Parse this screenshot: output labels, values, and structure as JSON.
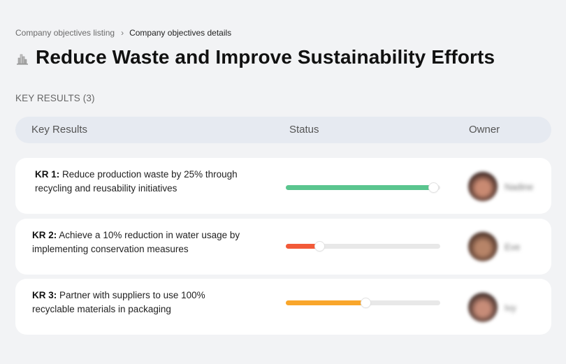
{
  "breadcrumb": {
    "items": [
      {
        "label": "Company objectives listing"
      },
      {
        "label": "Company objectives details"
      }
    ],
    "separator": "›"
  },
  "objective": {
    "icon": "cityscape-icon",
    "title": "Reduce Waste and Improve Sustainability Efforts"
  },
  "key_results_section": {
    "label": "KEY RESULTS (3)"
  },
  "table": {
    "columns": [
      "Key Results",
      "Status",
      "Owner"
    ],
    "rows": [
      {
        "kr_label": "KR 1:",
        "description": "Reduce production waste by 25% through recycling and reusability initiatives",
        "progress_percent": 96,
        "progress_color": "#5ac58e",
        "owner": {
          "name": "Nadine",
          "avatar_colors": [
            "#3a2420",
            "#c98a72"
          ]
        }
      },
      {
        "kr_label": "KR 2:",
        "description": "Achieve a 10% reduction in water usage by implementing conservation measures",
        "progress_percent": 22,
        "progress_color": "#f25a38",
        "owner": {
          "name": "Eve",
          "avatar_colors": [
            "#4a3026",
            "#b78468"
          ]
        }
      },
      {
        "kr_label": "KR 3:",
        "description": "Partner with suppliers to use 100% recyclable materials in packaging",
        "progress_percent": 52,
        "progress_color": "#f9a62b",
        "owner": {
          "name": "Ivy",
          "avatar_colors": [
            "#3d2a26",
            "#c78c78"
          ]
        }
      }
    ]
  }
}
